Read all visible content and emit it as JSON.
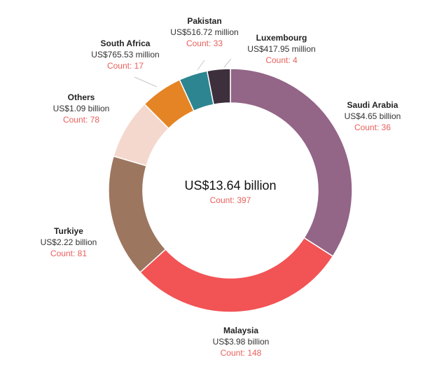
{
  "chart_data": {
    "type": "pie",
    "total_label": "US$13.64 billion",
    "total_count_label": "Count: 397",
    "slices": [
      {
        "name": "Saudi Arabia",
        "value": 4.65,
        "value_label": "US$4.65 billion",
        "count_label": "Count: 36",
        "color": "#936587"
      },
      {
        "name": "Malaysia",
        "value": 3.98,
        "value_label": "US$3.98 billion",
        "count_label": "Count: 148",
        "color": "#f25355"
      },
      {
        "name": "Turkiye",
        "value": 2.22,
        "value_label": "US$2.22 billion",
        "count_label": "Count: 81",
        "color": "#9d7660"
      },
      {
        "name": "Others",
        "value": 1.09,
        "value_label": "US$1.09 billion",
        "count_label": "Count: 78",
        "color": "#f5d8cd"
      },
      {
        "name": "South Africa",
        "value": 0.76553,
        "value_label": "US$765.53 million",
        "count_label": "Count: 17",
        "color": "#e58424"
      },
      {
        "name": "Pakistan",
        "value": 0.51672,
        "value_label": "US$516.72 million",
        "count_label": "Count: 33",
        "color": "#2c8590"
      },
      {
        "name": "Luxembourg",
        "value": 0.41795,
        "value_label": "US$417.95 million",
        "count_label": "Count: 4",
        "color": "#3d2f3b"
      }
    ]
  }
}
